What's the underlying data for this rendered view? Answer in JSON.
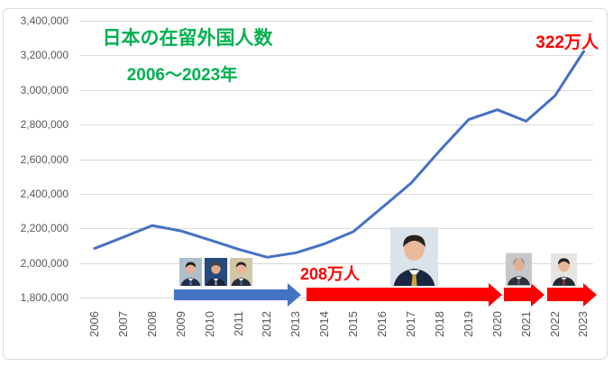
{
  "chart_data": {
    "type": "line",
    "title": "日本の在留外国人数",
    "subtitle": "2006〜2023年",
    "x": [
      "2006",
      "2007",
      "2008",
      "2009",
      "2010",
      "2011",
      "2012",
      "2013",
      "2014",
      "2015",
      "2016",
      "2017",
      "2018",
      "2019",
      "2020",
      "2021",
      "2022",
      "2023"
    ],
    "values": [
      2085000,
      2150000,
      2217000,
      2186000,
      2134000,
      2080000,
      2034000,
      2060000,
      2112000,
      2183000,
      2322000,
      2462000,
      2650000,
      2829000,
      2886000,
      2820000,
      2966000,
      3223000
    ],
    "ylim": [
      1800000,
      3400000
    ],
    "ytick_step": 200000,
    "ytick_labels": [
      "3,400,000",
      "3,200,000",
      "3,000,000",
      "2,800,000",
      "2,600,000",
      "2,400,000",
      "2,200,000",
      "2,000,000",
      "1,800,000"
    ],
    "grid": true,
    "legend": "none",
    "line_color": "#4472C4",
    "annotations": [
      {
        "text": "322万人",
        "color": "#FF0000",
        "near_year": "2023"
      },
      {
        "text": "208万人",
        "color": "#FF0000",
        "near_year": "2014"
      }
    ]
  },
  "timeline": {
    "segments": [
      {
        "name": "dpj-era-arrow",
        "color": "#4472C4",
        "photo_icons": [
          "hatoyama-photo",
          "kan-photo",
          "noda-photo"
        ]
      },
      {
        "name": "abe-era-arrow",
        "color": "#FF0000",
        "photo_icons": [
          "abe-photo"
        ]
      },
      {
        "name": "suga-era-arrow",
        "color": "#FF0000",
        "photo_icons": [
          "suga-photo"
        ]
      },
      {
        "name": "kishida-era-arrow",
        "color": "#FF0000",
        "photo_icons": [
          "kishida-photo"
        ]
      }
    ]
  },
  "colors": {
    "title_green": "#00B050",
    "annotation_red": "#FF0000",
    "line_blue": "#4472C4",
    "blue_arrow": "#4472C4",
    "red_arrow": "#FF0000",
    "gridline": "#D9D9D9",
    "axis_label": "#595959",
    "chart_border": "#D9D9D9"
  }
}
